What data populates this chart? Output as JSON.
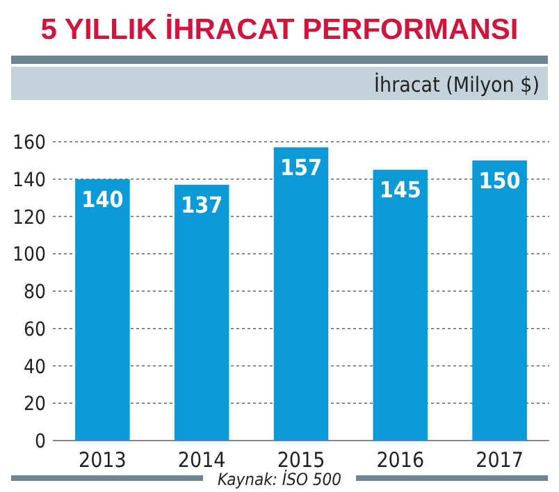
{
  "chart_data": {
    "type": "bar",
    "title": "5 YILLIK İHRACAT PERFORMANSI",
    "ylabel": "İhracat (Milyon $)",
    "categories": [
      "2013",
      "2014",
      "2015",
      "2016",
      "2017"
    ],
    "values": [
      140,
      137,
      157,
      145,
      150
    ],
    "color": "#0a9ad8",
    "ylim": [
      0,
      160
    ],
    "yticks": [
      0,
      20,
      40,
      60,
      80,
      100,
      120,
      140,
      160
    ],
    "grid": "y",
    "data_labels": true,
    "annotations": [
      "Kaynak: İSO 500"
    ]
  }
}
